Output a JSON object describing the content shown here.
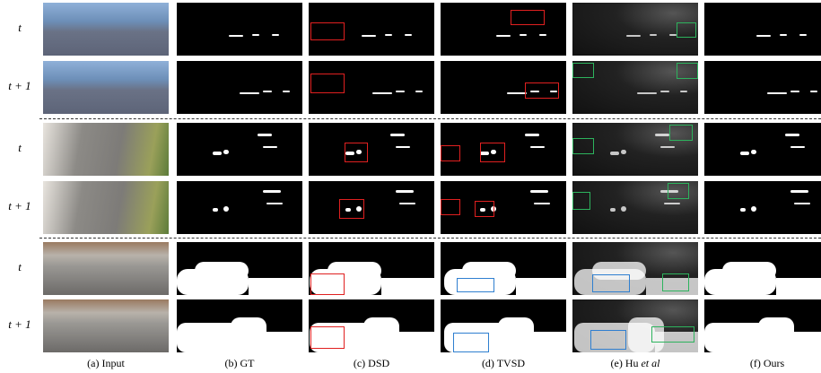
{
  "row_labels": [
    "t",
    "t + 1",
    "t",
    "t + 1",
    "t",
    "t + 1"
  ],
  "column_captions": [
    {
      "text": "(a) Input"
    },
    {
      "text": "(b) GT"
    },
    {
      "text": "(c) DSD"
    },
    {
      "text": "(d) TVSD"
    },
    {
      "text": "(e) Hu",
      "italic": "et al"
    },
    {
      "text": "(f) Ours"
    }
  ]
}
